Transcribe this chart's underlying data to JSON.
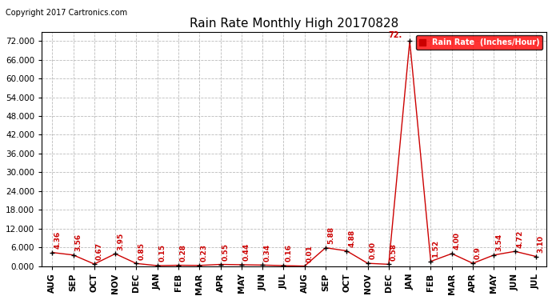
{
  "title": "Rain Rate Monthly High 20170828",
  "copyright": "Copyright 2017 Cartronics.com",
  "legend_label": "Rain Rate  (Inches/Hour)",
  "ylim": [
    0,
    75
  ],
  "yticks": [
    0.0,
    6.0,
    12.0,
    18.0,
    24.0,
    30.0,
    36.0,
    42.0,
    48.0,
    54.0,
    60.0,
    66.0,
    72.0
  ],
  "months": [
    "AUG",
    "SEP",
    "OCT",
    "NOV",
    "DEC",
    "JAN",
    "FEB",
    "MAR",
    "APR",
    "MAY",
    "JUN",
    "JUL",
    "AUG",
    "SEP",
    "OCT",
    "NOV",
    "DEC",
    "JAN",
    "FEB",
    "MAR",
    "APR",
    "MAY",
    "JUN",
    "JUL"
  ],
  "values": [
    4.36,
    3.56,
    0.67,
    3.95,
    0.85,
    0.15,
    0.28,
    0.23,
    0.55,
    0.44,
    0.34,
    0.16,
    0.01,
    5.88,
    4.88,
    0.9,
    0.58,
    72.0,
    1.52,
    4.0,
    0.9,
    3.54,
    4.72,
    3.1
  ],
  "value_labels": [
    "4.36",
    "3.56",
    "0.67",
    "3.95",
    "0.85",
    "0.15",
    "0.28",
    "0.23",
    "0.55",
    "0.44",
    "0.34",
    "0.16",
    "0.01",
    "5.88",
    "4.88",
    "0.90",
    "0.58",
    "72.",
    "1.52",
    "4.00",
    "0.9",
    "3.54",
    "4.72",
    "3.10"
  ],
  "line_color": "#cc0000",
  "marker_color": "#000000",
  "bg_color": "#ffffff",
  "grid_color": "#bbbbbb",
  "title_fontsize": 11,
  "copyright_fontsize": 7,
  "label_fontsize": 6.5,
  "tick_fontsize": 7.5,
  "ytick_fontsize": 7.5
}
